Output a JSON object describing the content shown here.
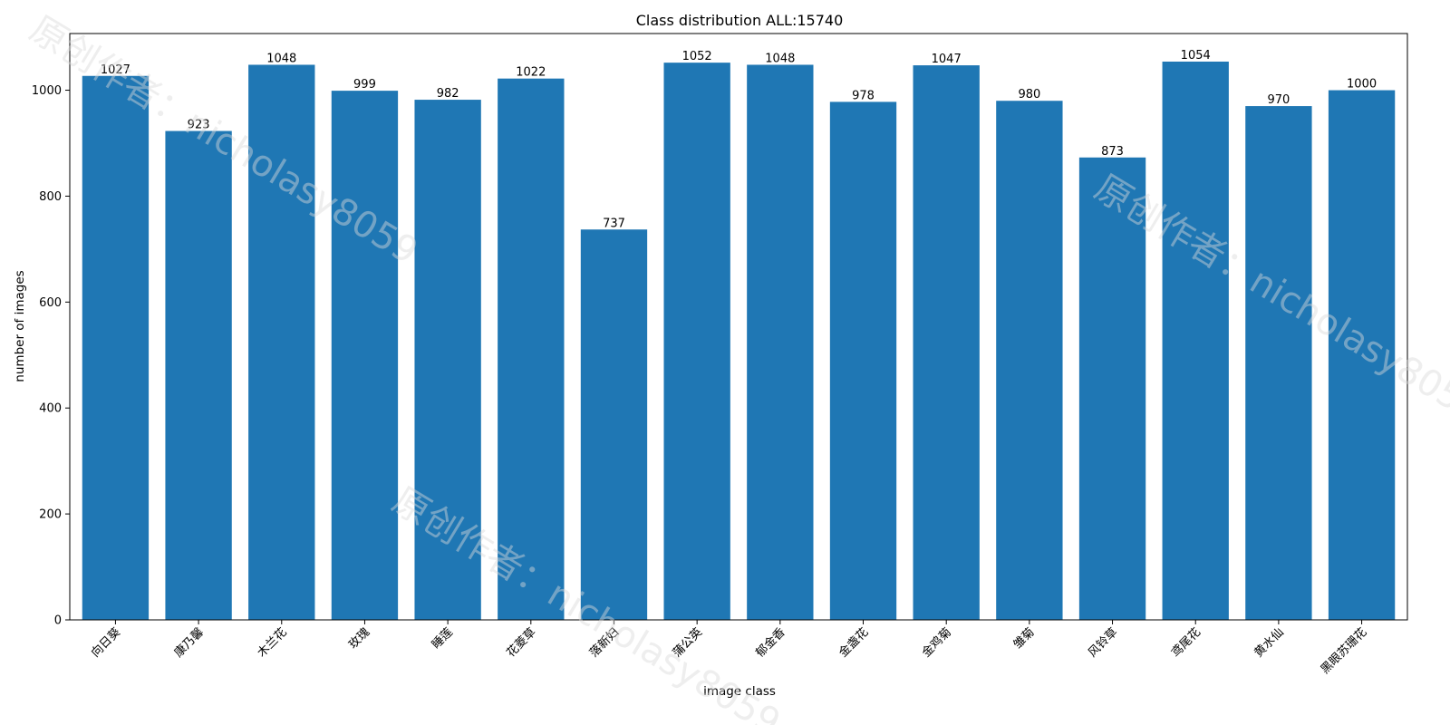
{
  "chart_data": {
    "type": "bar",
    "title": "Class distribution ALL:15740",
    "xlabel": "image class",
    "ylabel": "number of images",
    "categories": [
      "向日葵",
      "康乃馨",
      "木兰花",
      "玫瑰",
      "睡莲",
      "花菱草",
      "落新妇",
      "蒲公英",
      "郁金香",
      "金盏花",
      "金鸡菊",
      "雏菊",
      "风铃草",
      "鸢尾花",
      "黄水仙",
      "黑眼苏珊花"
    ],
    "values": [
      1027,
      923,
      1048,
      999,
      982,
      1022,
      737,
      1052,
      1048,
      978,
      1047,
      980,
      873,
      1054,
      970,
      1000
    ],
    "ylim": [
      0,
      1107
    ],
    "yticks": [
      0,
      200,
      400,
      600,
      800,
      1000
    ],
    "bar_color": "#1f77b4",
    "grid": false,
    "legend": "none",
    "watermark": "原创作者：nicholasy8059"
  }
}
